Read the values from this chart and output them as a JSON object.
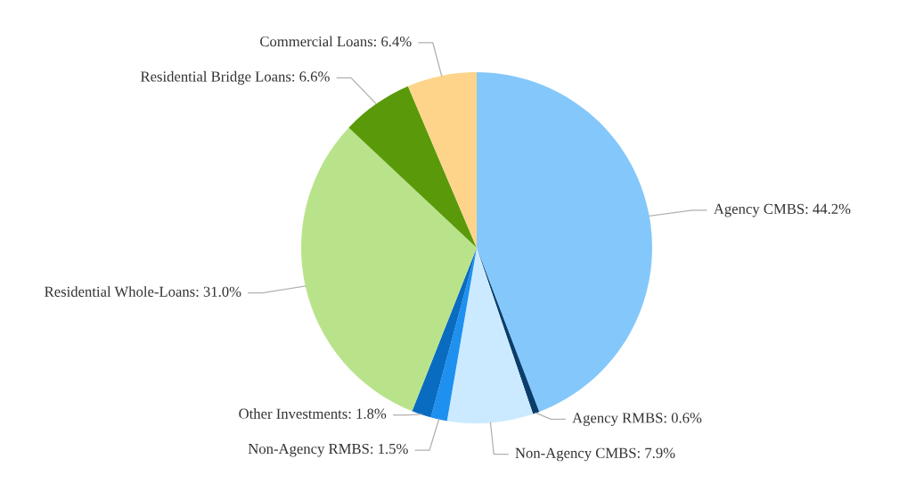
{
  "chart_data": {
    "type": "pie",
    "categories": [
      "Agency CMBS",
      "Agency RMBS",
      "Non-Agency CMBS",
      "Non-Agency RMBS",
      "Other Investments",
      "Residential Whole-Loans",
      "Residential Bridge Loans",
      "Commercial Loans"
    ],
    "values": [
      44.2,
      0.6,
      7.9,
      1.5,
      1.8,
      31.0,
      6.6,
      6.4
    ],
    "value_labels": [
      "44.2%",
      "0.6%",
      "7.9%",
      "1.5%",
      "1.8%",
      "31.0%",
      "6.6%",
      "6.4%"
    ],
    "colors": [
      "#84c8fb",
      "#0a3d6b",
      "#cceaff",
      "#1e90f0",
      "#0a6cc0",
      "#b9e38a",
      "#5a9a0a",
      "#fdd48a"
    ],
    "legend": false
  }
}
